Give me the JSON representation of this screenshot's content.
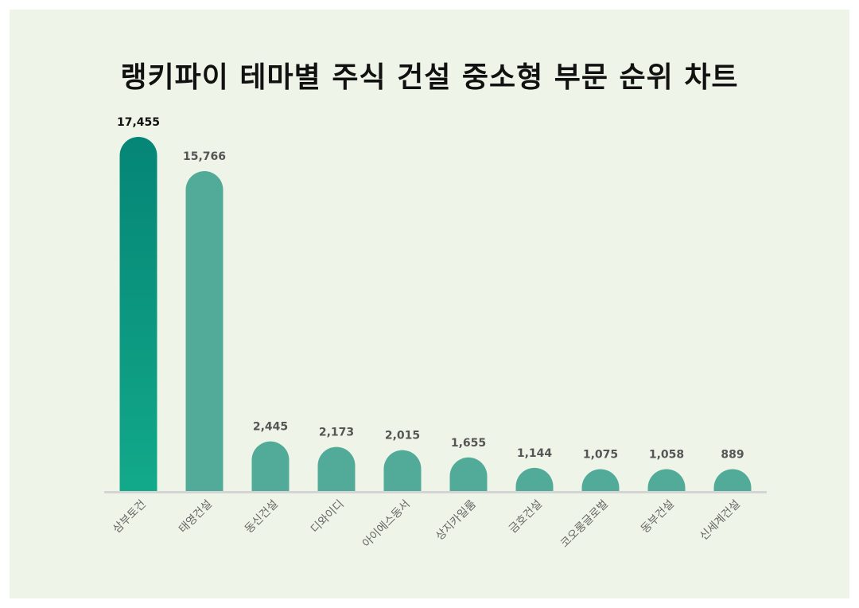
{
  "title": "랭키파이 테마별 주식 건설 중소형 부문 순위 차트",
  "colors": {
    "background": "#eef5e8",
    "bar": "#52ab99",
    "top_bar_top": "#058576",
    "top_bar_bottom": "#12a98a",
    "baseline": "#d4d4d4",
    "top_value_label": "#111111",
    "value_label": "#555555"
  },
  "chart_data": {
    "type": "bar",
    "title": "랭키파이 테마별 주식 건설 중소형 부문 순위 차트",
    "categories": [
      "삼부토건",
      "태영건설",
      "동신건설",
      "디와이디",
      "아이에스동서",
      "상지카일룸",
      "금호건설",
      "코오롱글로벌",
      "동부건설",
      "신세계건설"
    ],
    "values": [
      17455,
      15766,
      2445,
      2173,
      2015,
      1655,
      1144,
      1075,
      1058,
      889
    ],
    "value_labels": [
      "17,455",
      "15,766",
      "2,445",
      "2,173",
      "2,015",
      "1,655",
      "1,144",
      "1,075",
      "1,058",
      "889"
    ],
    "xlabel": "",
    "ylabel": "",
    "ylim": [
      0,
      17455
    ],
    "grid": false,
    "legend": "none"
  }
}
